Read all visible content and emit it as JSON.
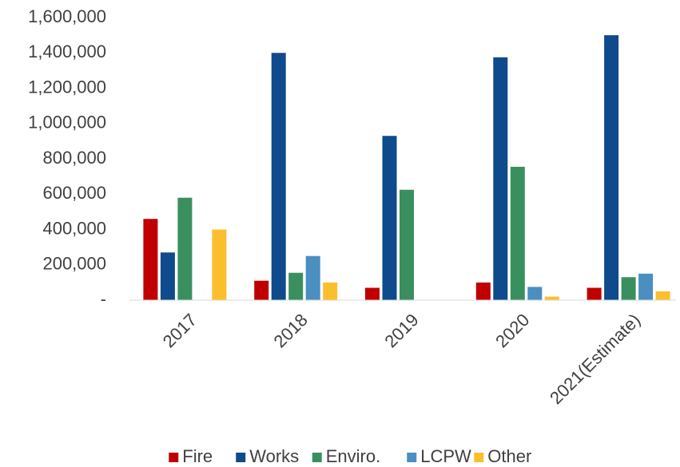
{
  "chart_data": {
    "type": "bar",
    "categories": [
      "2017",
      "2018",
      "2019",
      "2020",
      "2021(Estimate)"
    ],
    "series": [
      {
        "name": "Fire",
        "color": "#c00000",
        "values": [
          460000,
          110000,
          70000,
          100000,
          70000
        ]
      },
      {
        "name": "Works",
        "color": "#0e4a8c",
        "values": [
          270000,
          1400000,
          930000,
          1375000,
          1500000
        ]
      },
      {
        "name": "Enviro.",
        "color": "#3a8f5e",
        "values": [
          580000,
          155000,
          625000,
          755000,
          130000
        ]
      },
      {
        "name": "LCPW",
        "color": "#4a8fc0",
        "values": [
          0,
          250000,
          0,
          75000,
          150000
        ]
      },
      {
        "name": "Other",
        "color": "#fbbf2e",
        "values": [
          400000,
          100000,
          0,
          20000,
          50000
        ]
      }
    ],
    "ylim": [
      0,
      1600000
    ],
    "yticks": [
      {
        "value": 0,
        "label": "-"
      },
      {
        "value": 200000,
        "label": "200,000"
      },
      {
        "value": 400000,
        "label": "400,000"
      },
      {
        "value": 600000,
        "label": "600,000"
      },
      {
        "value": 800000,
        "label": "800,000"
      },
      {
        "value": 1000000,
        "label": "1,000,000"
      },
      {
        "value": 1200000,
        "label": "1,200,000"
      },
      {
        "value": 1400000,
        "label": "1,400,000"
      },
      {
        "value": 1600000,
        "label": "1,600,000"
      }
    ],
    "grid": false,
    "legend": "bottom"
  }
}
